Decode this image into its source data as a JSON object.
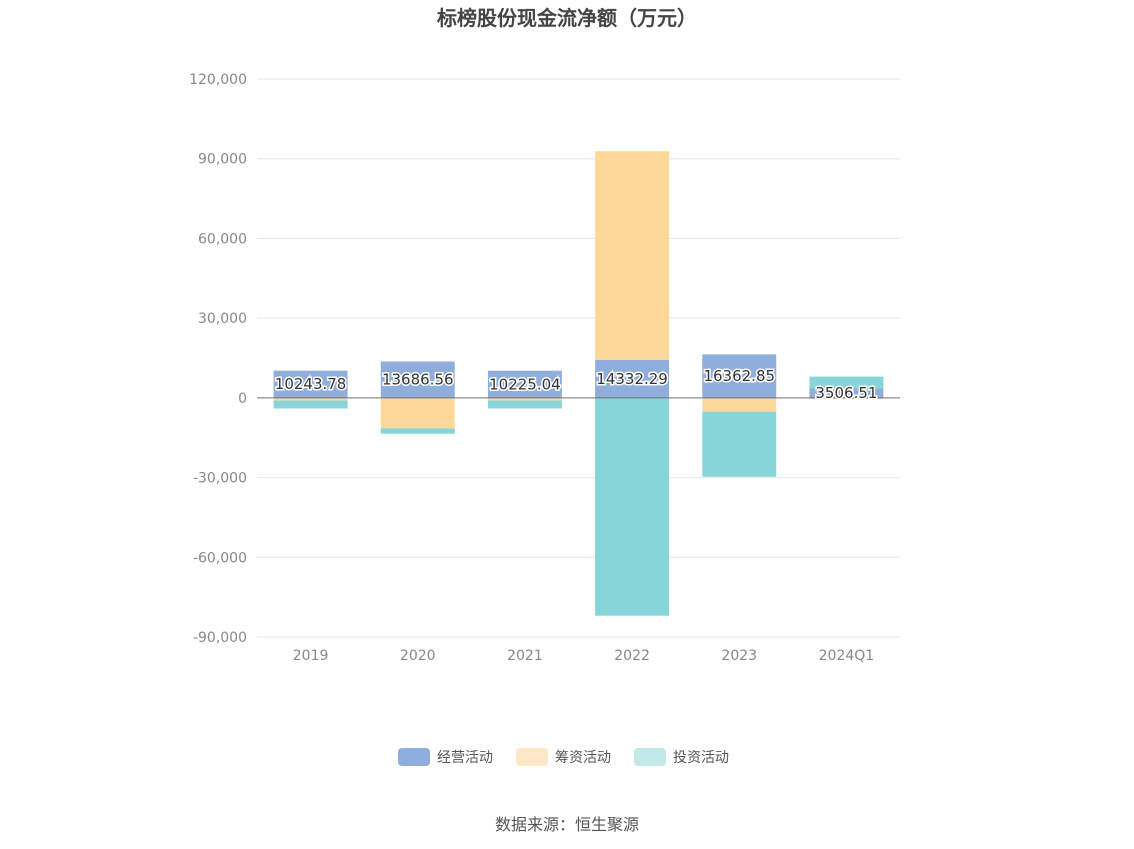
{
  "chart_data": {
    "type": "bar",
    "stacked": true,
    "title": "标榜股份现金流净额（万元）",
    "categories": [
      "2019",
      "2020",
      "2021",
      "2022",
      "2023",
      "2024Q1"
    ],
    "series": [
      {
        "name": "经营活动",
        "color": "#8FAEDC",
        "values": [
          10243.78,
          13686.56,
          10225.04,
          14332.29,
          16362.85,
          3506.51
        ]
      },
      {
        "name": "筹资活动",
        "color": "#FED89B",
        "values": [
          -1000,
          -11500,
          -1000,
          78500,
          -5200,
          -500
        ]
      },
      {
        "name": "投资活动",
        "color": "#88D5D9",
        "values": [
          -3000,
          -2000,
          -3000,
          -82000,
          -24500,
          4500
        ]
      }
    ],
    "data_labels": [
      "10243.78",
      "13686.56",
      "10225.04",
      "14332.29",
      "16362.85",
      "3506.51"
    ],
    "yticks": [
      "120,000",
      "90,000",
      "60,000",
      "30,000",
      "0",
      "-30,000",
      "-60,000",
      "-90,000"
    ],
    "ylim": [
      -90000,
      120000
    ],
    "grid": true,
    "legend_position": "bottom"
  },
  "source": "数据来源：恒生聚源"
}
